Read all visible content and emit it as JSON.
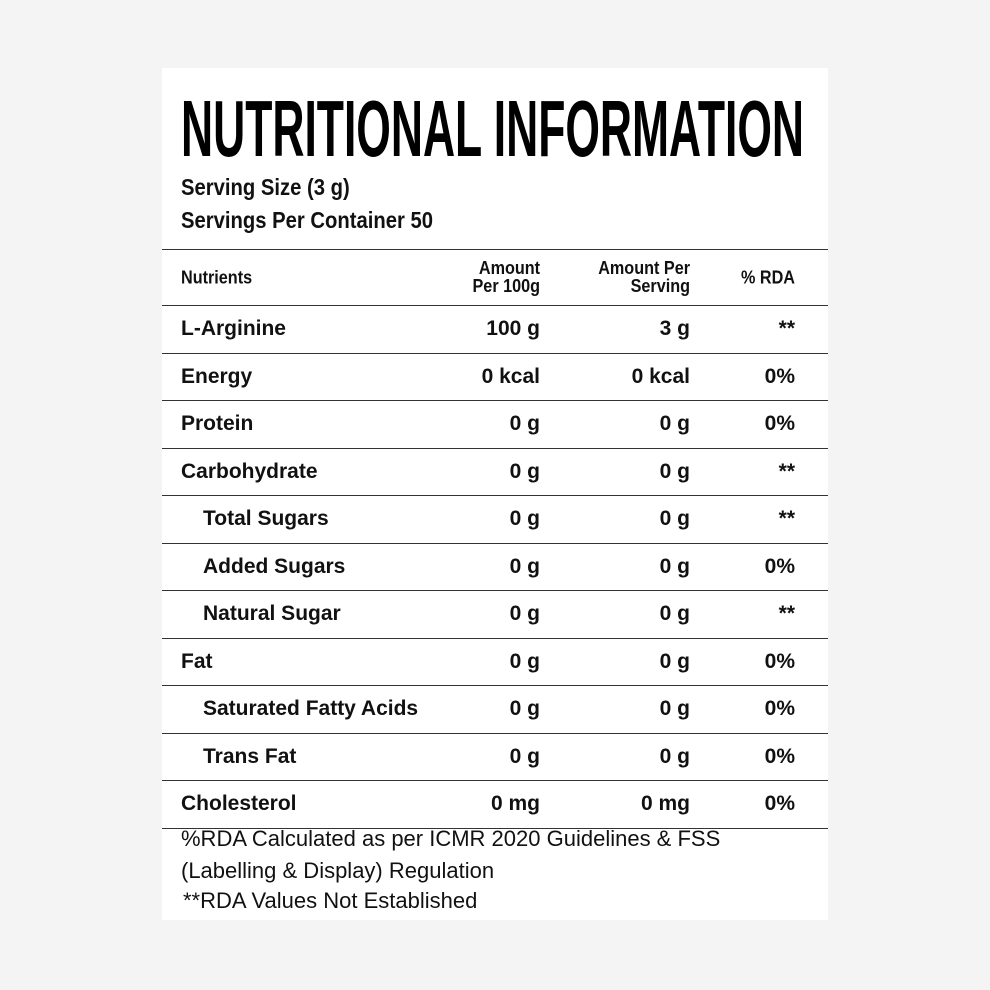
{
  "header": {
    "title": "NUTRITIONAL INFORMATION",
    "serving_size": "Serving Size  (3 g)",
    "servings_per_container": "Servings Per Container 50"
  },
  "table": {
    "columns": [
      "Nutrients",
      "Amount\nPer 100g",
      "Amount Per\nServing",
      "% RDA"
    ],
    "rows": [
      [
        "L-Arginine",
        "100 g",
        "3 g",
        "**"
      ],
      [
        "Energy",
        "0 kcal",
        "0 kcal",
        "0%"
      ],
      [
        "Protein",
        "0 g",
        "0 g",
        "0%"
      ],
      [
        "Carbohydrate",
        "0 g",
        "0 g",
        "**"
      ],
      [
        "Total Sugars",
        "0 g",
        "0 g",
        "**"
      ],
      [
        "Added Sugars",
        "0 g",
        "0 g",
        "0%"
      ],
      [
        "Natural Sugar",
        "0 g",
        "0 g",
        "**"
      ],
      [
        "Fat",
        "0 g",
        "0 g",
        "0%"
      ],
      [
        "Saturated Fatty Acids",
        "0 g",
        "0 g",
        "0%"
      ],
      [
        "Trans Fat",
        "0 g",
        "0 g",
        "0%"
      ],
      [
        "Cholesterol",
        "0 mg",
        "0 mg",
        "0%"
      ]
    ]
  },
  "footer": {
    "note": "%RDA Calculated as per ICMR 2020 Guidelines & FSS\n(Labelling & Display) Regulation",
    "legend": "**RDA  Values Not Established"
  }
}
